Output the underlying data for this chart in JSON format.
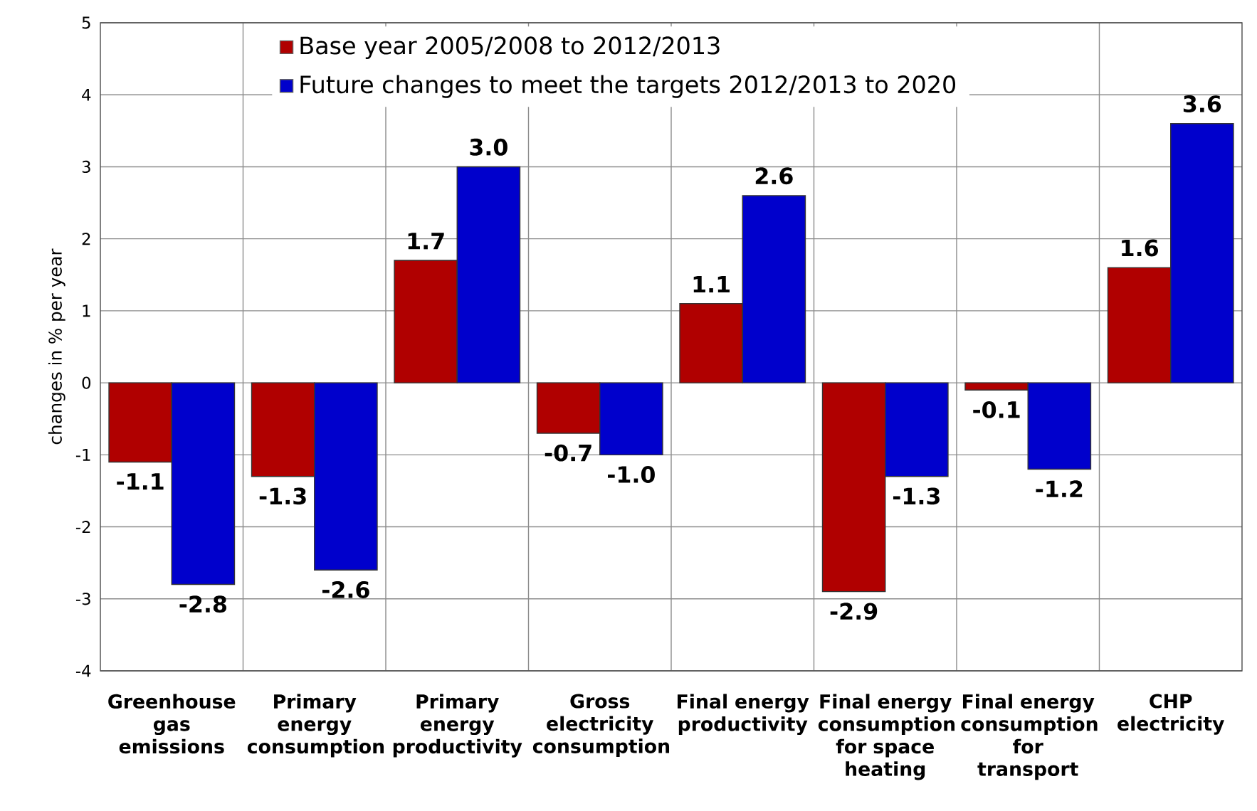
{
  "chart_data": {
    "type": "bar",
    "categories": [
      "Greenhouse gas emissions",
      "Primary energy consumption",
      "Primary energy productivity",
      "Gross electricity consumption",
      "Final energy productivity",
      "Final energy consumption for space heating",
      "Final energy consumption for transport",
      "CHP electricity"
    ],
    "series": [
      {
        "name": "Base year 2005/2008 to 2012/2013",
        "color": "#b00000",
        "values": [
          -1.1,
          -1.3,
          1.7,
          -0.7,
          1.1,
          -2.9,
          -0.1,
          1.6
        ],
        "value_labels": [
          "-1.1",
          "-1.3",
          "1.7",
          "-0.7",
          "1.1",
          "-2.9",
          "-0.1",
          "1.6"
        ]
      },
      {
        "name": "Future changes to meet the targets 2012/2013 to 2020",
        "color": "#0000cc",
        "values": [
          -2.8,
          -2.6,
          3.0,
          -1.0,
          2.6,
          -1.3,
          -1.2,
          3.6
        ],
        "value_labels": [
          "-2.8",
          "-2.6",
          "3.0",
          "-1.0",
          "2.6",
          "-1.3",
          "-1.2",
          "3.6"
        ]
      }
    ],
    "ylabel": "changes in % per year",
    "ylim": [
      -4,
      5
    ],
    "yticks": [
      -4,
      -3,
      -2,
      -1,
      0,
      1,
      2,
      3,
      4,
      5
    ],
    "grid": true,
    "legend": "top"
  }
}
